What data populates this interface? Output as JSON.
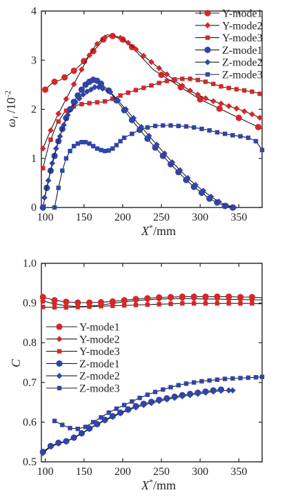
{
  "chart_data": [
    {
      "type": "line",
      "ylabel_base": "ω",
      "ylabel_sub": "i",
      "ylabel_unit": " /10",
      "ylabel_exp": "-2",
      "xlabel_base": "X",
      "xlabel_sup": "*",
      "xlabel_unit": "/mm",
      "xlim": [
        95,
        380
      ],
      "ylim": [
        0,
        4
      ],
      "xticks": [
        100,
        150,
        200,
        250,
        300,
        350
      ],
      "yticks": [
        0,
        1,
        2,
        3,
        4
      ],
      "grid": false,
      "legend_position": "top-right",
      "series": [
        {
          "name": "Y-mode1",
          "color": "#d62728",
          "marker": "circle",
          "x": [
            100,
            110,
            120,
            130,
            140,
            150,
            160,
            170,
            180,
            190,
            200,
            210,
            225,
            240,
            260,
            280,
            300,
            320,
            340,
            360,
            380
          ],
          "y": [
            2.4,
            2.55,
            2.6,
            2.7,
            2.82,
            2.98,
            3.15,
            3.32,
            3.52,
            3.48,
            3.42,
            3.3,
            3.05,
            2.8,
            2.6,
            2.4,
            2.2,
            2.05,
            1.9,
            1.75,
            1.6
          ],
          "marker_x": [
            100,
            112,
            125,
            137,
            150,
            162,
            175,
            187,
            200,
            212,
            250,
            275,
            300,
            325,
            350,
            375
          ]
        },
        {
          "name": "Y-mode2",
          "color": "#d62728",
          "marker": "diamond",
          "x": [
            97,
            105,
            115,
            125,
            135,
            145,
            155,
            165,
            175,
            185,
            195,
            205,
            215,
            230,
            250,
            270,
            290,
            310,
            330,
            350,
            370,
            378
          ],
          "y": [
            1.2,
            1.5,
            1.85,
            2.15,
            2.45,
            2.75,
            3.05,
            3.3,
            3.45,
            3.5,
            3.47,
            3.38,
            3.25,
            3.05,
            2.8,
            2.55,
            2.35,
            2.2,
            2.1,
            2.0,
            1.88,
            1.82
          ],
          "marker_x": [
            97,
            107,
            117,
            127,
            137,
            147,
            157,
            167,
            177,
            187,
            197,
            207,
            217,
            227,
            237,
            247,
            257,
            267,
            277,
            287,
            297,
            307,
            317,
            327,
            337,
            347,
            357,
            367,
            377
          ]
        },
        {
          "name": "Y-mode3",
          "color": "#d62728",
          "marker": "square",
          "x": [
            97,
            105,
            115,
            125,
            135,
            145,
            155,
            165,
            175,
            185,
            200,
            215,
            230,
            250,
            270,
            290,
            310,
            330,
            350,
            370,
            380
          ],
          "y": [
            0.8,
            1.3,
            1.7,
            1.95,
            2.05,
            2.1,
            2.12,
            2.14,
            2.15,
            2.2,
            2.3,
            2.38,
            2.45,
            2.55,
            2.62,
            2.62,
            2.55,
            2.45,
            2.4,
            2.35,
            2.3
          ],
          "marker_x": [
            97,
            107,
            117,
            127,
            137,
            147,
            157,
            167,
            177,
            187,
            197,
            207,
            217,
            227,
            237,
            247,
            257,
            267,
            277,
            287,
            297,
            307,
            317,
            327,
            337,
            347,
            357,
            367,
            377
          ]
        },
        {
          "name": "Z-mode1",
          "color": "#3045a8",
          "marker": "circle",
          "x": [
            97,
            102,
            107,
            112,
            117,
            122,
            127,
            132,
            137,
            142,
            147,
            152,
            157,
            162,
            167,
            172,
            182,
            192,
            202,
            212,
            222,
            232,
            242,
            252,
            262,
            272,
            282,
            292,
            302,
            312,
            322,
            332,
            342
          ],
          "y": [
            0.0,
            0.4,
            0.75,
            1.05,
            1.35,
            1.6,
            1.82,
            2.0,
            2.15,
            2.28,
            2.4,
            2.5,
            2.56,
            2.6,
            2.58,
            2.52,
            2.38,
            2.18,
            1.98,
            1.78,
            1.58,
            1.4,
            1.22,
            1.05,
            0.88,
            0.72,
            0.56,
            0.42,
            0.3,
            0.18,
            0.1,
            0.03,
            0.0
          ],
          "marker_x": [
            97,
            102,
            107,
            112,
            117,
            122,
            127,
            132,
            137,
            142,
            147,
            152,
            157,
            162,
            167,
            172,
            182,
            192,
            202,
            212,
            222,
            232,
            242,
            252,
            262,
            272,
            282,
            292,
            302,
            312,
            322,
            332,
            342
          ]
        },
        {
          "name": "Z-mode2",
          "color": "#3045a8",
          "marker": "diamond",
          "x": [
            99,
            104,
            109,
            114,
            119,
            124,
            129,
            134,
            139,
            144,
            149,
            154,
            159,
            164,
            169,
            174,
            184,
            194,
            204,
            214,
            224,
            234,
            244,
            254,
            264,
            274,
            284,
            294,
            304,
            314,
            324,
            334,
            344
          ],
          "y": [
            0.2,
            0.55,
            0.9,
            1.2,
            1.45,
            1.68,
            1.88,
            2.02,
            2.14,
            2.22,
            2.3,
            2.36,
            2.4,
            2.45,
            2.45,
            2.42,
            2.35,
            2.18,
            2.0,
            1.82,
            1.64,
            1.46,
            1.28,
            1.1,
            0.92,
            0.76,
            0.6,
            0.46,
            0.34,
            0.22,
            0.12,
            0.04,
            0.0
          ],
          "marker_x": [
            99,
            104,
            109,
            114,
            119,
            124,
            129,
            134,
            139,
            144,
            149,
            154,
            159,
            164,
            169,
            174,
            184,
            194,
            204,
            214,
            224,
            234,
            244,
            254,
            264,
            274,
            284,
            294,
            304,
            314,
            324,
            334,
            344
          ]
        },
        {
          "name": "Z-mode3",
          "color": "#3045a8",
          "marker": "square",
          "x": [
            112,
            117,
            122,
            127,
            132,
            137,
            142,
            147,
            152,
            157,
            162,
            167,
            172,
            177,
            182,
            187,
            192,
            197,
            202,
            212,
            222,
            232,
            242,
            252,
            262,
            272,
            282,
            292,
            302,
            312,
            322,
            332,
            342,
            352,
            362,
            372,
            380
          ],
          "y": [
            0.0,
            0.4,
            0.75,
            1.0,
            1.15,
            1.25,
            1.3,
            1.33,
            1.33,
            1.3,
            1.25,
            1.2,
            1.17,
            1.15,
            1.16,
            1.2,
            1.27,
            1.35,
            1.42,
            1.5,
            1.58,
            1.63,
            1.66,
            1.67,
            1.67,
            1.66,
            1.65,
            1.63,
            1.6,
            1.57,
            1.53,
            1.5,
            1.47,
            1.45,
            1.42,
            1.35,
            1.17
          ],
          "marker_x": [
            112,
            117,
            122,
            127,
            132,
            137,
            142,
            147,
            152,
            157,
            162,
            167,
            172,
            177,
            182,
            187,
            192,
            197,
            202,
            212,
            222,
            232,
            242,
            252,
            262,
            272,
            282,
            292,
            302,
            312,
            322,
            332,
            342,
            352,
            362,
            372,
            380
          ]
        }
      ]
    },
    {
      "type": "line",
      "ylabel": "C",
      "xlabel_base": "X",
      "xlabel_sup": "*",
      "xlabel_unit": "/mm",
      "xlim": [
        95,
        380
      ],
      "ylim": [
        0.5,
        1.0
      ],
      "xticks": [
        100,
        150,
        200,
        250,
        300,
        350
      ],
      "yticks": [
        "0.5",
        "0.6",
        "0.7",
        "0.8",
        "0.9",
        "1.0"
      ],
      "grid": false,
      "legend_position": "center-left",
      "series": [
        {
          "name": "Y-mode1",
          "color": "#d62728",
          "marker": "circle",
          "x": [
            97,
            112,
            127,
            142,
            157,
            172,
            187,
            202,
            217,
            232,
            247,
            262,
            277,
            292,
            307,
            322,
            337,
            352,
            367,
            380
          ],
          "y": [
            0.915,
            0.907,
            0.903,
            0.901,
            0.901,
            0.902,
            0.904,
            0.907,
            0.91,
            0.912,
            0.914,
            0.915,
            0.916,
            0.916,
            0.916,
            0.916,
            0.916,
            0.915,
            0.915,
            0.913
          ],
          "marker_x": [
            97,
            112,
            127,
            142,
            157,
            172,
            187,
            202,
            217,
            232,
            247,
            262,
            277,
            292,
            307,
            322,
            337,
            352,
            367
          ]
        },
        {
          "name": "Y-mode2",
          "color": "#d62728",
          "marker": "diamond",
          "x": [
            97,
            112,
            127,
            142,
            157,
            172,
            187,
            202,
            217,
            232,
            247,
            262,
            277,
            292,
            307,
            322,
            337,
            352,
            367,
            380
          ],
          "y": [
            0.905,
            0.898,
            0.893,
            0.891,
            0.892,
            0.895,
            0.899,
            0.903,
            0.906,
            0.908,
            0.91,
            0.911,
            0.911,
            0.911,
            0.91,
            0.91,
            0.909,
            0.909,
            0.908,
            0.908
          ],
          "marker_x": [
            97,
            112,
            127,
            142,
            157,
            172,
            187,
            202,
            217,
            232,
            247,
            262,
            277,
            292,
            307,
            322,
            337,
            352,
            367
          ]
        },
        {
          "name": "Y-mode3",
          "color": "#d62728",
          "marker": "square",
          "x": [
            97,
            112,
            127,
            142,
            157,
            172,
            187,
            202,
            217,
            232,
            247,
            262,
            277,
            292,
            307,
            322,
            337,
            352,
            367,
            380
          ],
          "y": [
            0.89,
            0.889,
            0.889,
            0.89,
            0.891,
            0.892,
            0.893,
            0.894,
            0.895,
            0.896,
            0.897,
            0.898,
            0.899,
            0.899,
            0.899,
            0.899,
            0.899,
            0.899,
            0.899,
            0.898
          ],
          "marker_x": [
            97,
            112,
            127,
            142,
            157,
            172,
            187,
            202,
            217,
            232,
            247,
            262,
            277,
            292,
            307,
            322,
            337,
            352,
            367
          ]
        },
        {
          "name": "Z-mode1",
          "color": "#3045a8",
          "marker": "circle",
          "x": [
            97,
            107,
            117,
            127,
            137,
            147,
            157,
            167,
            177,
            187,
            197,
            207,
            217,
            227,
            237,
            247,
            257,
            267,
            277,
            287,
            297,
            307,
            317,
            327
          ],
          "y": [
            0.525,
            0.54,
            0.548,
            0.552,
            0.561,
            0.572,
            0.584,
            0.595,
            0.606,
            0.615,
            0.624,
            0.632,
            0.64,
            0.646,
            0.651,
            0.656,
            0.66,
            0.664,
            0.668,
            0.671,
            0.674,
            0.677,
            0.68,
            0.682
          ],
          "marker_x": [
            97,
            107,
            117,
            127,
            137,
            147,
            157,
            167,
            177,
            187,
            197,
            207,
            217,
            227,
            237,
            247,
            257,
            267,
            277,
            287,
            297,
            307,
            317,
            327
          ]
        },
        {
          "name": "Z-mode2",
          "color": "#3045a8",
          "marker": "diamond",
          "x": [
            97,
            107,
            117,
            127,
            137,
            147,
            157,
            167,
            177,
            187,
            197,
            207,
            217,
            227,
            237,
            247,
            257,
            267,
            277,
            287,
            297,
            307,
            317,
            327,
            337,
            342
          ],
          "y": [
            0.522,
            0.538,
            0.546,
            0.551,
            0.56,
            0.571,
            0.583,
            0.594,
            0.604,
            0.613,
            0.622,
            0.63,
            0.637,
            0.643,
            0.648,
            0.653,
            0.657,
            0.661,
            0.665,
            0.668,
            0.671,
            0.674,
            0.677,
            0.679,
            0.68,
            0.68
          ],
          "marker_x": [
            97,
            107,
            117,
            127,
            137,
            147,
            157,
            167,
            177,
            187,
            197,
            207,
            217,
            227,
            237,
            247,
            257,
            267,
            277,
            287,
            297,
            307,
            317,
            327,
            337,
            342
          ]
        },
        {
          "name": "Z-mode3",
          "color": "#3045a8",
          "marker": "square",
          "x": [
            112,
            122,
            132,
            142,
            152,
            162,
            172,
            182,
            192,
            202,
            212,
            222,
            232,
            242,
            252,
            262,
            272,
            282,
            292,
            302,
            312,
            322,
            332,
            342,
            352,
            362,
            372,
            380
          ],
          "y": [
            0.603,
            0.593,
            0.585,
            0.583,
            0.588,
            0.6,
            0.612,
            0.624,
            0.634,
            0.643,
            0.652,
            0.661,
            0.669,
            0.676,
            0.682,
            0.688,
            0.693,
            0.697,
            0.7,
            0.703,
            0.705,
            0.707,
            0.709,
            0.71,
            0.711,
            0.712,
            0.713,
            0.714
          ],
          "marker_x": [
            112,
            122,
            132,
            142,
            152,
            162,
            172,
            182,
            192,
            202,
            212,
            222,
            232,
            242,
            252,
            262,
            272,
            282,
            292,
            302,
            312,
            322,
            332,
            342,
            352,
            362,
            372,
            380
          ]
        }
      ]
    }
  ]
}
